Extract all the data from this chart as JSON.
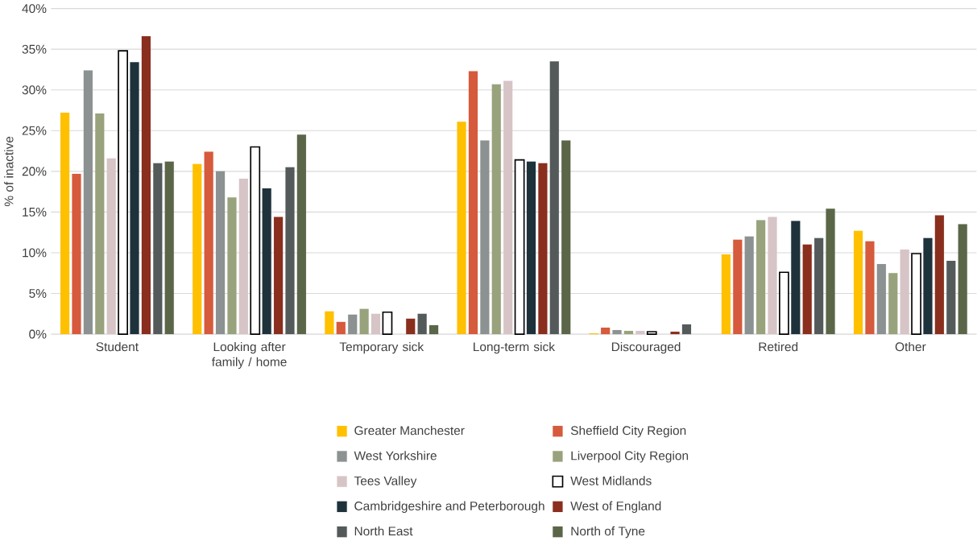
{
  "chart_data": {
    "type": "bar",
    "ylabel": "% of inactive",
    "categories": [
      "Student",
      "Looking after family / home",
      "Temporary sick",
      "Long-term sick",
      "Discouraged",
      "Retired",
      "Other"
    ],
    "ylim": [
      0,
      40
    ],
    "yticks": [
      {
        "value": 0,
        "label": "0%"
      },
      {
        "value": 5,
        "label": "5%"
      },
      {
        "value": 10,
        "label": "10%"
      },
      {
        "value": 15,
        "label": "15%"
      },
      {
        "value": 20,
        "label": "20%"
      },
      {
        "value": 25,
        "label": "25%"
      },
      {
        "value": 30,
        "label": "30%"
      },
      {
        "value": 35,
        "label": "35%"
      },
      {
        "value": 40,
        "label": "40%"
      }
    ],
    "grid": "y",
    "legend": "bottom",
    "series": [
      {
        "name": "Greater Manchester",
        "color": "#ffc000",
        "values": [
          27.2,
          20.9,
          2.8,
          26.1,
          0.1,
          9.8,
          12.7
        ]
      },
      {
        "name": "Sheffield City Region",
        "color": "#d65a3c",
        "values": [
          19.7,
          22.4,
          1.5,
          32.3,
          0.8,
          11.6,
          11.4
        ]
      },
      {
        "name": "West Yorkshire",
        "color": "#8c9191",
        "values": [
          32.4,
          20.0,
          2.4,
          23.8,
          0.5,
          12.0,
          8.6
        ]
      },
      {
        "name": "Liverpool City Region",
        "color": "#98a27c",
        "values": [
          27.1,
          16.8,
          3.1,
          30.7,
          0.4,
          14.0,
          7.5
        ]
      },
      {
        "name": "Tees Valley",
        "color": "#d7c4c6",
        "values": [
          21.6,
          19.1,
          2.5,
          31.1,
          0.4,
          14.4,
          10.4
        ]
      },
      {
        "name": "West Midlands",
        "color": "#ffffff",
        "values": [
          34.8,
          23.0,
          2.7,
          21.4,
          0.3,
          7.6,
          9.9
        ]
      },
      {
        "name": "Cambridgeshire and Peterborough",
        "color": "#1e323c",
        "values": [
          33.4,
          17.9,
          null,
          21.2,
          null,
          13.9,
          11.8
        ]
      },
      {
        "name": "West of England",
        "color": "#8a2e1e",
        "values": [
          36.6,
          14.4,
          1.9,
          21.0,
          0.3,
          11.0,
          14.6
        ]
      },
      {
        "name": "North East",
        "color": "#545a5a",
        "values": [
          21.0,
          20.5,
          2.5,
          33.5,
          1.2,
          11.8,
          9.0
        ]
      },
      {
        "name": "North of Tyne",
        "color": "#5b6649",
        "values": [
          21.2,
          24.5,
          1.1,
          23.8,
          null,
          15.4,
          13.5
        ]
      }
    ]
  }
}
